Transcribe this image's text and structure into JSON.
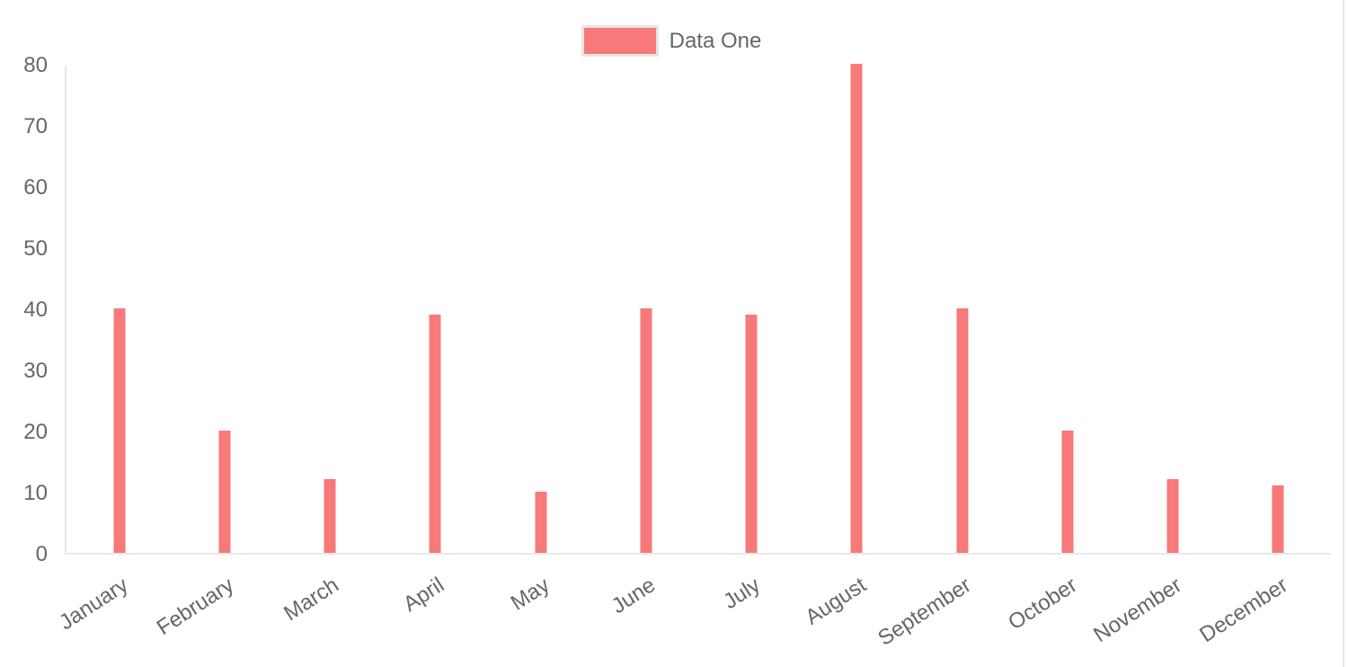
{
  "legend": {
    "items": [
      {
        "label": "Data One",
        "color": "#f87979"
      }
    ],
    "position": "top"
  },
  "colors": {
    "bar": "#f87979",
    "axis_border": "#e8e8e8",
    "legend_swatch_border": "#e6e6e6",
    "text": "#666666",
    "background": "#ffffff"
  },
  "chart_data": {
    "type": "bar",
    "categories": [
      "January",
      "February",
      "March",
      "April",
      "May",
      "June",
      "July",
      "August",
      "September",
      "October",
      "November",
      "December"
    ],
    "series": [
      {
        "name": "Data One",
        "values": [
          40,
          20,
          12,
          39,
          10,
          40,
          39,
          80,
          40,
          20,
          12,
          11
        ]
      }
    ],
    "title": "",
    "xlabel": "",
    "ylabel": "",
    "ylim": [
      0,
      80
    ],
    "y_ticks": [
      0,
      10,
      20,
      30,
      40,
      50,
      60,
      70,
      80
    ],
    "grid": false,
    "x_label_rotation_deg": -33,
    "legend_position": "top"
  }
}
